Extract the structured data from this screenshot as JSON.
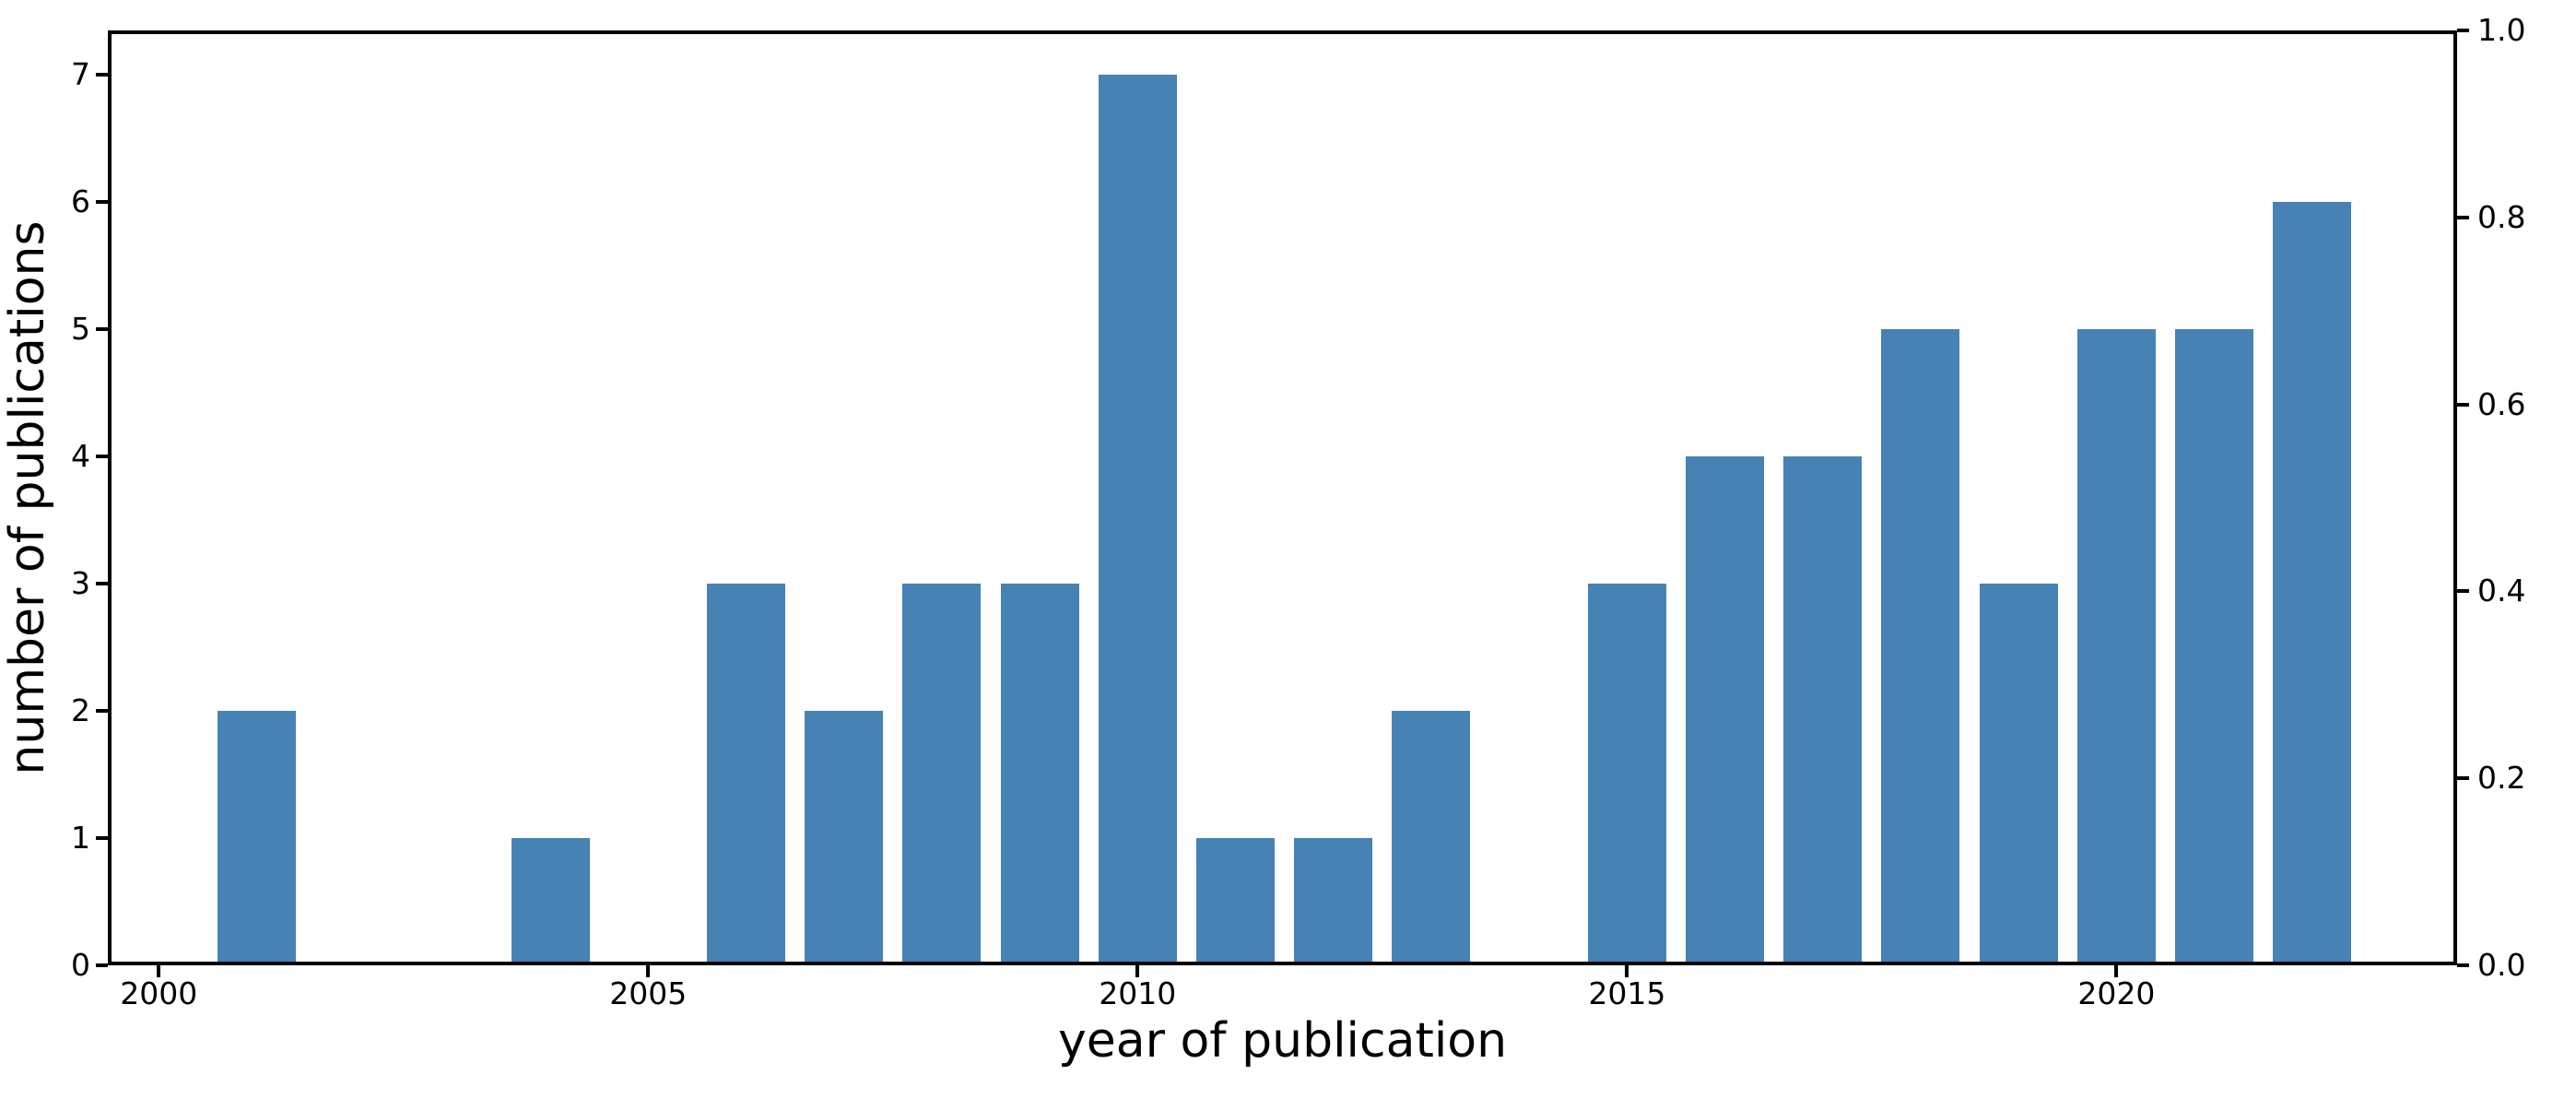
{
  "chart_data": {
    "type": "bar",
    "title": "",
    "xlabel": "year of publication",
    "ylabel": "number of publications",
    "x": [
      2001,
      2004,
      2006,
      2007,
      2008,
      2009,
      2010,
      2011,
      2012,
      2013,
      2015,
      2016,
      2017,
      2018,
      2019,
      2020,
      2021,
      2022
    ],
    "values": [
      2,
      1,
      3,
      2,
      3,
      3,
      7,
      1,
      1,
      2,
      3,
      4,
      4,
      5,
      3,
      5,
      5,
      6
    ],
    "bar_color": "#4682b4",
    "bar_width_years": 0.8,
    "xlim": [
      1999.48,
      2023.48
    ],
    "x_ticks": [
      2000,
      2005,
      2010,
      2015,
      2020
    ],
    "left_axis": {
      "lim": [
        0,
        7.35
      ],
      "ticks": [
        "0",
        "1",
        "2",
        "3",
        "4",
        "5",
        "6",
        "7"
      ]
    },
    "right_axis": {
      "lim": [
        0,
        1.0
      ],
      "ticks": [
        "0.0",
        "0.2",
        "0.4",
        "0.6",
        "0.8",
        "1.0"
      ]
    },
    "grid": false,
    "legend": "none",
    "background_color": "#ffffff",
    "axis_color": "#000000"
  }
}
